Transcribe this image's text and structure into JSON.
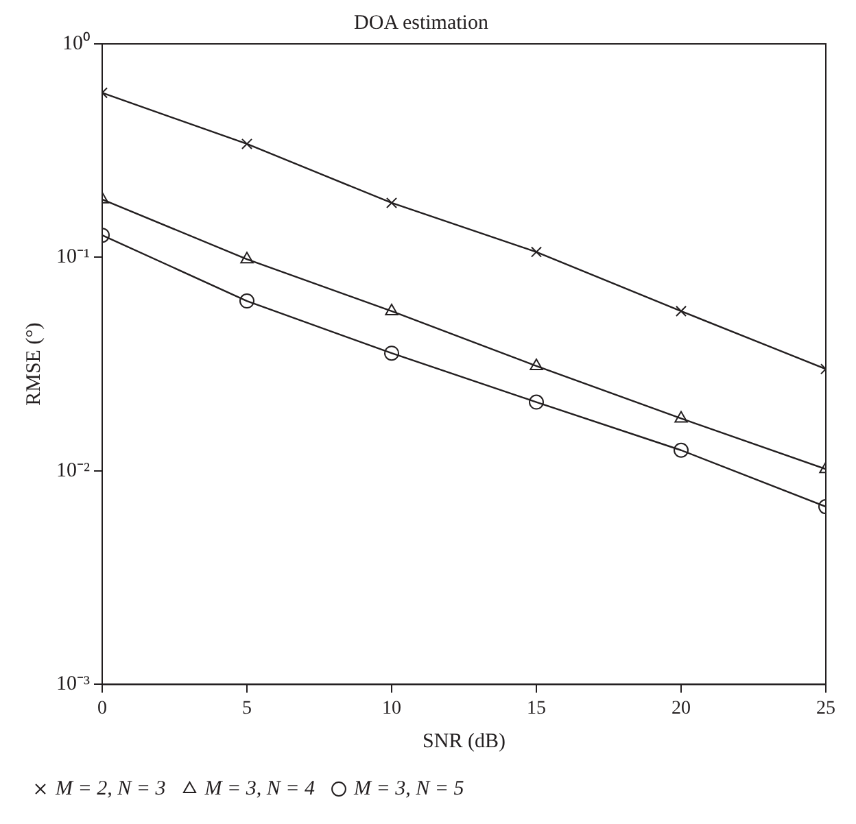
{
  "chart_data": {
    "type": "line",
    "title": "DOA estimation",
    "xlabel": "SNR (dB)",
    "ylabel": "RMSE (°)",
    "x": [
      0,
      5,
      10,
      15,
      20,
      25
    ],
    "xlim": [
      0,
      25
    ],
    "xticks": [
      0,
      5,
      10,
      15,
      20,
      25
    ],
    "ylim": [
      0.001,
      1
    ],
    "yticks": [
      {
        "value": 0.001,
        "label": "10⁻³"
      },
      {
        "value": 0.01,
        "label": "10⁻²"
      },
      {
        "value": 0.1,
        "label": "10⁻¹"
      },
      {
        "value": 1,
        "label": "10⁰"
      }
    ],
    "log": "y",
    "grid": false,
    "legend": "bottom",
    "line_style": "solid",
    "series": [
      {
        "name": "M = 2, N = 3",
        "color": "#231f20",
        "marker": "cross",
        "values": [
          0.59,
          0.34,
          0.18,
          0.106,
          0.056,
          0.03
        ]
      },
      {
        "name": "M = 3, N = 4",
        "color": "#231f20",
        "marker": "triangle",
        "values": [
          0.187,
          0.098,
          0.056,
          0.031,
          0.0176,
          0.0102
        ]
      },
      {
        "name": "M = 3, N = 5",
        "color": "#231f20",
        "marker": "circle",
        "values": [
          0.127,
          0.0625,
          0.0356,
          0.021,
          0.0125,
          0.0068
        ]
      }
    ]
  }
}
